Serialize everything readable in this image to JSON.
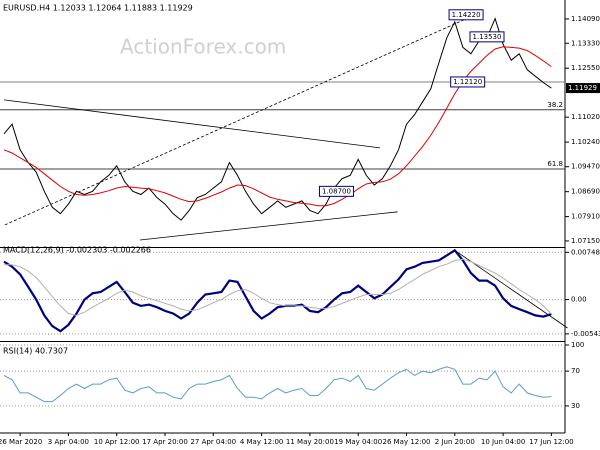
{
  "chart_data": [
    {
      "type": "line",
      "title": "EURUSD.H4  1.12033 1.12064 1.11883 1.11929",
      "watermark": "ActionForex.com",
      "categories": [
        null,
        null,
        "26 Mar 2020",
        null,
        null,
        null,
        null,
        null,
        "3 Apr 04:00",
        null,
        null,
        null,
        null,
        null,
        "10 Apr 12:00",
        null,
        null,
        null,
        null,
        null,
        "17 Apr 20:00",
        null,
        null,
        null,
        null,
        null,
        "27 Apr 04:00",
        null,
        null,
        null,
        null,
        null,
        "4 May 12:00",
        null,
        null,
        null,
        null,
        null,
        "11 May 20:00",
        null,
        null,
        null,
        null,
        null,
        "19 May 04:00",
        null,
        null,
        null,
        null,
        null,
        "26 May 12:00",
        null,
        null,
        null,
        null,
        null,
        "2 Jun 20:00",
        null,
        null,
        null,
        null,
        null,
        "10 Jun 04:00",
        null,
        null,
        null,
        null,
        null,
        "17 Jun 12:00",
        null
      ],
      "series": [
        {
          "color": "#000000",
          "values": [
            1.105,
            1.108,
            1.1,
            1.096,
            1.093,
            1.087,
            1.082,
            1.08,
            1.083,
            1.087,
            1.086,
            1.087,
            1.09,
            1.092,
            1.095,
            1.09,
            1.087,
            1.086,
            1.088,
            1.085,
            1.083,
            1.08,
            1.078,
            1.081,
            1.085,
            1.086,
            1.088,
            1.09,
            1.096,
            1.092,
            1.087,
            1.083,
            1.08,
            1.082,
            1.084,
            1.082,
            1.083,
            1.084,
            1.081,
            1.08,
            1.083,
            1.088,
            1.091,
            1.092,
            1.097,
            1.092,
            1.089,
            1.091,
            1.095,
            1.1,
            1.108,
            1.111,
            1.115,
            1.119,
            1.127,
            1.135,
            1.14,
            1.132,
            1.13,
            1.134,
            1.135,
            1.141,
            1.133,
            1.128,
            1.13,
            1.125,
            1.123,
            1.121,
            1.11929,
            null
          ]
        },
        {
          "color": "#e00000",
          "values": [
            1.1,
            1.099,
            1.0975,
            1.096,
            1.0945,
            1.0925,
            1.0905,
            1.0885,
            1.087,
            1.086,
            1.0858,
            1.086,
            1.0865,
            1.0872,
            1.088,
            1.0885,
            1.0883,
            1.088,
            1.0878,
            1.0872,
            1.0865,
            1.0855,
            1.0845,
            1.0838,
            1.084,
            1.0848,
            1.0858,
            1.0868,
            1.088,
            1.089,
            1.0888,
            1.0878,
            1.0865,
            1.0852,
            1.0845,
            1.084,
            1.0835,
            1.0833,
            1.083,
            1.0825,
            1.0825,
            1.0832,
            1.0845,
            1.086,
            1.0878,
            1.0893,
            1.0898,
            1.09,
            1.0908,
            1.0925,
            1.095,
            1.098,
            1.101,
            1.1045,
            1.1085,
            1.113,
            1.1175,
            1.1215,
            1.1245,
            1.127,
            1.1295,
            1.1315,
            1.1322,
            1.132,
            1.1318,
            1.131,
            1.1295,
            1.1278,
            1.126,
            null
          ]
        }
      ],
      "ylim": [
        1.0696,
        1.1462
      ],
      "yticks": [
        {
          "value": 1.1409,
          "label": "1.14090"
        },
        {
          "value": 1.1333,
          "label": "1.13330"
        },
        {
          "value": 1.1255,
          "label": "1.12550"
        },
        {
          "value": 1.1102,
          "label": "1.11020"
        },
        {
          "value": 1.1024,
          "label": "1.10240"
        },
        {
          "value": 1.0947,
          "label": "1.09470"
        },
        {
          "value": 1.0869,
          "label": "1.08690"
        },
        {
          "value": 1.0791,
          "label": "1.07910"
        },
        {
          "value": 1.0715,
          "label": "1.07150"
        }
      ],
      "last_price": {
        "value": 1.11929,
        "label": "1.11929"
      },
      "levels": [
        {
          "value": 1.1212
        },
        {
          "value": 1.1125,
          "label": "38.2"
        },
        {
          "value": 1.094,
          "label": "61.8"
        }
      ],
      "trendlines": [
        {
          "x": [
            0,
            46.7
          ],
          "y": [
            1.1156,
            1.1006
          ],
          "style": "solid"
        },
        {
          "x": [
            16.9,
            48.9
          ],
          "y": [
            1.0718,
            1.0806
          ],
          "style": "solid"
        },
        {
          "x": [
            0.1,
            57.9
          ],
          "y": [
            1.0765,
            1.1415
          ],
          "style": "dashed"
        }
      ],
      "annotations": [
        {
          "label": "1.14220",
          "value": 1.1422,
          "x": 57.4
        },
        {
          "label": "1.13530",
          "value": 1.1353,
          "x": 60.0
        },
        {
          "label": "1.12120",
          "value": 1.1212,
          "x": 57.6
        },
        {
          "label": "1.08700",
          "value": 1.087,
          "x": 41.3
        }
      ],
      "grid": false
    },
    {
      "type": "line",
      "title": "MACD(12,26,9) -0.002303 -0.002266",
      "series": [
        {
          "color": "#000080",
          "width": 2.2,
          "values": [
            0.006,
            0.0052,
            0.004,
            0.002,
            0.0,
            -0.0025,
            -0.0042,
            -0.005,
            -0.004,
            -0.0022,
            0.0,
            0.001,
            0.0012,
            0.002,
            0.0028,
            0.0012,
            -0.0005,
            -0.001,
            -0.0008,
            -0.0012,
            -0.0018,
            -0.0022,
            -0.003,
            -0.0022,
            -0.0005,
            0.0008,
            0.001,
            0.0012,
            0.003,
            0.0028,
            0.0005,
            -0.0018,
            -0.003,
            -0.0022,
            -0.0012,
            -0.001,
            -0.001,
            -0.0008,
            -0.0018,
            -0.002,
            -0.0012,
            0.0,
            0.001,
            0.0012,
            0.0022,
            0.0012,
            0.0002,
            0.0008,
            0.002,
            0.0032,
            0.0048,
            0.0052,
            0.0058,
            0.006,
            0.0062,
            0.007,
            0.0078,
            0.0062,
            0.0042,
            0.003,
            0.003,
            0.0022,
            0.0002,
            -0.001,
            -0.0015,
            -0.002,
            -0.0025,
            -0.0027,
            -0.002303,
            null
          ]
        },
        {
          "color": "#b0b0b0",
          "width": 1,
          "values": [
            0.0055,
            0.0055,
            0.0052,
            0.0045,
            0.0035,
            0.002,
            0.0005,
            -0.001,
            -0.0022,
            -0.0025,
            -0.002,
            -0.0012,
            -0.0005,
            0.0002,
            0.001,
            0.0015,
            0.0012,
            0.0006,
            0.0002,
            -0.0002,
            -0.0006,
            -0.001,
            -0.0015,
            -0.0018,
            -0.0016,
            -0.0011,
            -0.0005,
            0.0,
            0.0008,
            0.0014,
            0.0016,
            0.001,
            0.0002,
            -0.0005,
            -0.0008,
            -0.001,
            -0.001,
            -0.001,
            -0.0012,
            -0.0014,
            -0.0014,
            -0.0011,
            -0.0006,
            -0.0001,
            0.0004,
            0.0008,
            0.0008,
            0.0008,
            0.001,
            0.0016,
            0.0024,
            0.0032,
            0.004,
            0.0046,
            0.0052,
            0.0056,
            0.0062,
            0.0064,
            0.006,
            0.0054,
            0.0048,
            0.0042,
            0.0034,
            0.0025,
            0.0016,
            0.0008,
            0.0,
            -0.001,
            -0.002266,
            null
          ]
        }
      ],
      "ylim": [
        -0.0064,
        0.0088
      ],
      "yticks": [
        0.007485,
        {
          "value": 0,
          "label": "0.00"
        },
        -0.005431
      ],
      "trendlines": [
        {
          "x": [
            56,
            70
          ],
          "y": [
            0.0078,
            -0.0045
          ],
          "style": "solid"
        }
      ],
      "grid": true
    },
    {
      "type": "line",
      "title": "RSI(14) 40.7307",
      "series": [
        {
          "color": "#5a9bd8",
          "width": 1,
          "values": [
            65,
            60,
            45,
            45,
            40,
            35,
            35,
            42,
            50,
            55,
            50,
            55,
            55,
            60,
            62,
            48,
            45,
            50,
            52,
            45,
            45,
            40,
            38,
            50,
            55,
            55,
            58,
            60,
            65,
            50,
            40,
            40,
            38,
            45,
            50,
            45,
            48,
            50,
            42,
            42,
            50,
            60,
            62,
            58,
            65,
            50,
            48,
            55,
            62,
            68,
            72,
            65,
            70,
            68,
            72,
            75,
            72,
            55,
            55,
            62,
            60,
            70,
            52,
            45,
            55,
            45,
            42,
            40,
            40.7307,
            null
          ]
        }
      ],
      "ylim": [
        0,
        100
      ],
      "yticks": [
        100,
        70,
        30
      ],
      "grid": true
    }
  ]
}
